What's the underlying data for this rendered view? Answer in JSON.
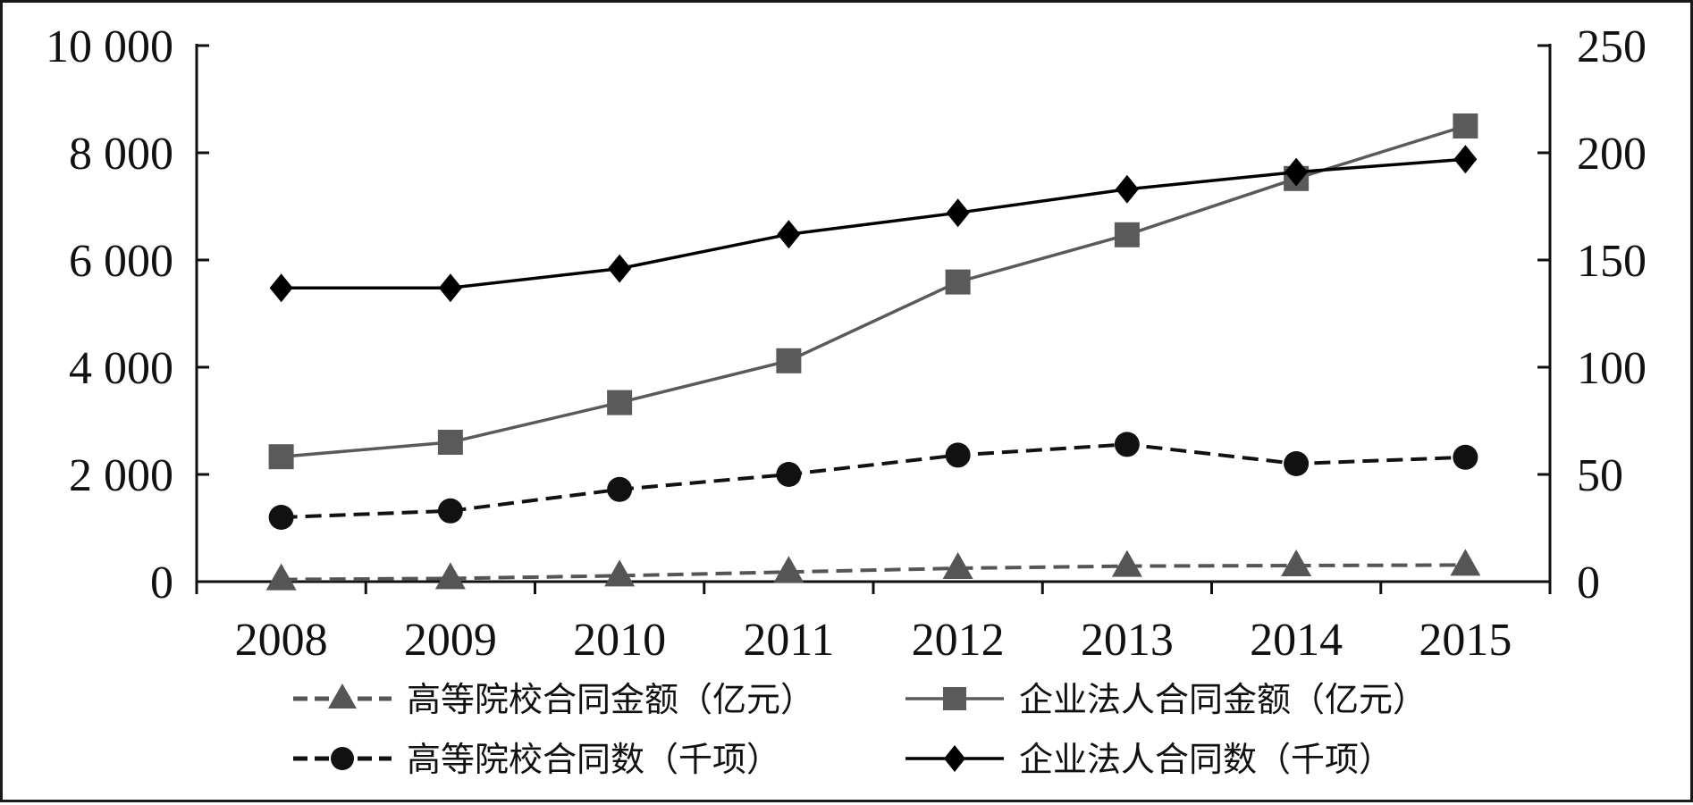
{
  "chart_data": {
    "type": "line",
    "title": "",
    "xlabel": "",
    "ylabel": "",
    "categories": [
      "2008",
      "2009",
      "2010",
      "2011",
      "2012",
      "2013",
      "2014",
      "2015"
    ],
    "y_left": {
      "ylim": [
        0,
        10000
      ],
      "ticks": [
        0,
        2000,
        4000,
        6000,
        8000,
        10000
      ],
      "tick_labels": [
        "0",
        "2 000",
        "4 000",
        "6 000",
        "8 000",
        "10 000"
      ]
    },
    "y_right": {
      "ylim": [
        0,
        250
      ],
      "ticks": [
        0,
        50,
        100,
        150,
        200,
        250
      ],
      "tick_labels": [
        "0",
        "50",
        "100",
        "150",
        "200",
        "250"
      ]
    },
    "grid": false,
    "legend_position": "bottom",
    "series": [
      {
        "name": "高等院校合同金额（亿元）",
        "axis": "left",
        "marker": "triangle",
        "line": "dashed",
        "color": "#555555",
        "values": [
          40,
          60,
          110,
          180,
          250,
          290,
          300,
          310
        ]
      },
      {
        "name": "企业法人合同金额（亿元）",
        "axis": "left",
        "marker": "square",
        "line": "solid",
        "color": "#5a5a5a",
        "values": [
          2330,
          2600,
          3340,
          4120,
          5590,
          6470,
          7520,
          8500
        ]
      },
      {
        "name": "高等院校合同数（千项）",
        "axis": "right",
        "marker": "circle",
        "line": "dashed",
        "color": "#111111",
        "values": [
          30,
          33,
          43,
          50,
          59,
          64,
          55,
          58
        ]
      },
      {
        "name": "企业法人合同数（千项）",
        "axis": "right",
        "marker": "diamond",
        "line": "solid",
        "color": "#000000",
        "values": [
          137,
          137,
          146,
          162,
          172,
          183,
          191,
          197
        ]
      }
    ]
  }
}
